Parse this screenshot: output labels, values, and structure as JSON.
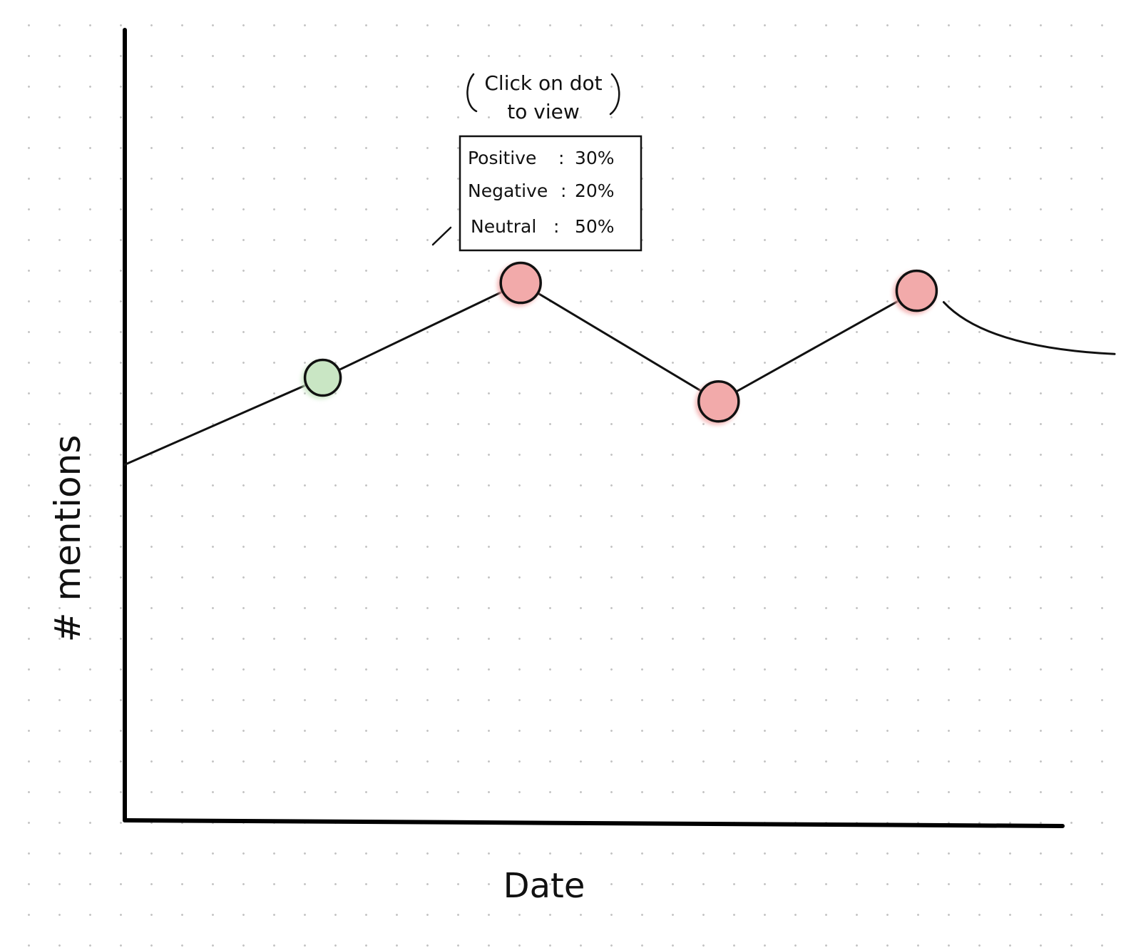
{
  "hint_text": {
    "line1": "Click on dot",
    "line2": "to view"
  },
  "tooltip": {
    "rows": [
      {
        "label": "Positive",
        "sep": ":",
        "value": "30%"
      },
      {
        "label": "Negative",
        "sep": ":",
        "value": "20%"
      },
      {
        "label": "Neutral",
        "sep": ":",
        "value": "50%"
      }
    ]
  },
  "axes": {
    "xlabel": "Date",
    "ylabel": "# mentions"
  },
  "colors": {
    "positive_dot": "#c9e6c4",
    "negative_dot": "#f2aaaa",
    "line": "#111111",
    "grid_dot": "#c4c4c4"
  },
  "chart_data": {
    "type": "line",
    "xlabel": "Date",
    "ylabel": "# mentions",
    "grid": "dotted background",
    "ylim": [
      0,
      100
    ],
    "points": [
      {
        "x": 0,
        "y": 45,
        "marker": "none"
      },
      {
        "x": 1,
        "y": 56,
        "marker": "positive"
      },
      {
        "x": 2,
        "y": 68,
        "marker": "negative"
      },
      {
        "x": 3,
        "y": 53,
        "marker": "negative"
      },
      {
        "x": 4,
        "y": 67,
        "marker": "negative"
      },
      {
        "x": 5,
        "y": 59,
        "marker": "none"
      }
    ],
    "xlim": [
      0,
      5
    ]
  }
}
